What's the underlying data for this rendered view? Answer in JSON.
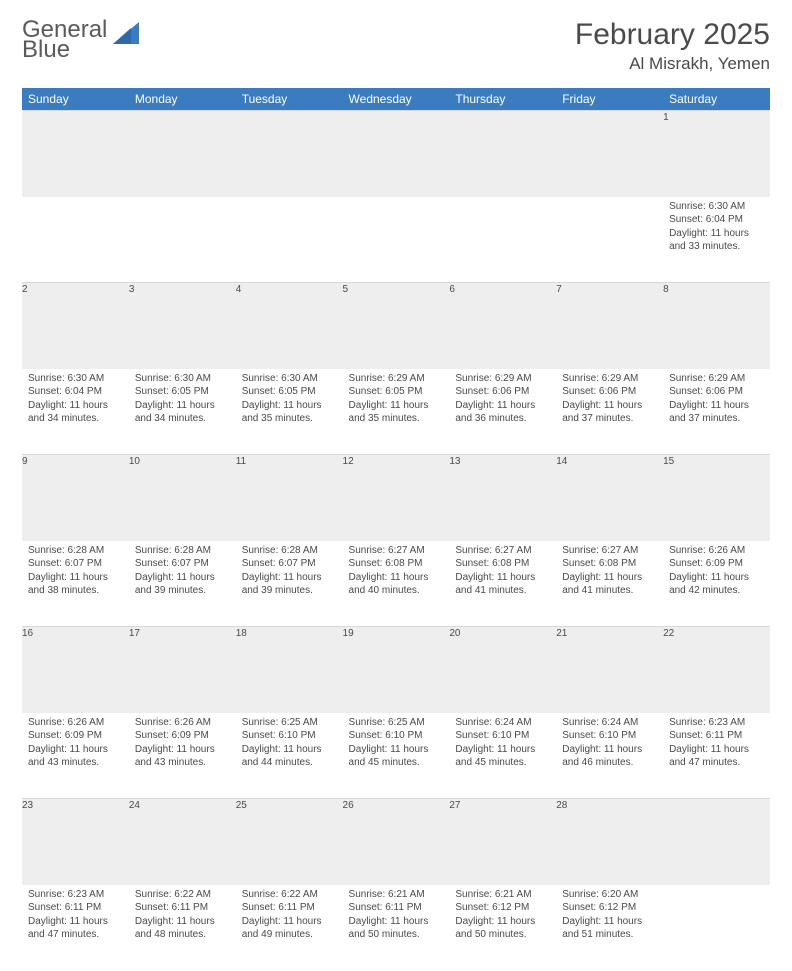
{
  "logo": {
    "text_top": "General",
    "text_bottom": "Blue"
  },
  "title": "February 2025",
  "location": "Al Misrakh, Yemen",
  "colors": {
    "header_bg": "#3b7bbf",
    "header_fg": "#ffffff",
    "daynum_bg": "#eeeeee",
    "text": "#4a4a4a",
    "page_bg": "#ffffff",
    "logo_blue": "#3b7bbf"
  },
  "weekdays": [
    "Sunday",
    "Monday",
    "Tuesday",
    "Wednesday",
    "Thursday",
    "Friday",
    "Saturday"
  ],
  "weeks": [
    [
      null,
      null,
      null,
      null,
      null,
      null,
      {
        "n": "1",
        "sr": "Sunrise: 6:30 AM",
        "ss": "Sunset: 6:04 PM",
        "dl": "Daylight: 11 hours and 33 minutes."
      }
    ],
    [
      {
        "n": "2",
        "sr": "Sunrise: 6:30 AM",
        "ss": "Sunset: 6:04 PM",
        "dl": "Daylight: 11 hours and 34 minutes."
      },
      {
        "n": "3",
        "sr": "Sunrise: 6:30 AM",
        "ss": "Sunset: 6:05 PM",
        "dl": "Daylight: 11 hours and 34 minutes."
      },
      {
        "n": "4",
        "sr": "Sunrise: 6:30 AM",
        "ss": "Sunset: 6:05 PM",
        "dl": "Daylight: 11 hours and 35 minutes."
      },
      {
        "n": "5",
        "sr": "Sunrise: 6:29 AM",
        "ss": "Sunset: 6:05 PM",
        "dl": "Daylight: 11 hours and 35 minutes."
      },
      {
        "n": "6",
        "sr": "Sunrise: 6:29 AM",
        "ss": "Sunset: 6:06 PM",
        "dl": "Daylight: 11 hours and 36 minutes."
      },
      {
        "n": "7",
        "sr": "Sunrise: 6:29 AM",
        "ss": "Sunset: 6:06 PM",
        "dl": "Daylight: 11 hours and 37 minutes."
      },
      {
        "n": "8",
        "sr": "Sunrise: 6:29 AM",
        "ss": "Sunset: 6:06 PM",
        "dl": "Daylight: 11 hours and 37 minutes."
      }
    ],
    [
      {
        "n": "9",
        "sr": "Sunrise: 6:28 AM",
        "ss": "Sunset: 6:07 PM",
        "dl": "Daylight: 11 hours and 38 minutes."
      },
      {
        "n": "10",
        "sr": "Sunrise: 6:28 AM",
        "ss": "Sunset: 6:07 PM",
        "dl": "Daylight: 11 hours and 39 minutes."
      },
      {
        "n": "11",
        "sr": "Sunrise: 6:28 AM",
        "ss": "Sunset: 6:07 PM",
        "dl": "Daylight: 11 hours and 39 minutes."
      },
      {
        "n": "12",
        "sr": "Sunrise: 6:27 AM",
        "ss": "Sunset: 6:08 PM",
        "dl": "Daylight: 11 hours and 40 minutes."
      },
      {
        "n": "13",
        "sr": "Sunrise: 6:27 AM",
        "ss": "Sunset: 6:08 PM",
        "dl": "Daylight: 11 hours and 41 minutes."
      },
      {
        "n": "14",
        "sr": "Sunrise: 6:27 AM",
        "ss": "Sunset: 6:08 PM",
        "dl": "Daylight: 11 hours and 41 minutes."
      },
      {
        "n": "15",
        "sr": "Sunrise: 6:26 AM",
        "ss": "Sunset: 6:09 PM",
        "dl": "Daylight: 11 hours and 42 minutes."
      }
    ],
    [
      {
        "n": "16",
        "sr": "Sunrise: 6:26 AM",
        "ss": "Sunset: 6:09 PM",
        "dl": "Daylight: 11 hours and 43 minutes."
      },
      {
        "n": "17",
        "sr": "Sunrise: 6:26 AM",
        "ss": "Sunset: 6:09 PM",
        "dl": "Daylight: 11 hours and 43 minutes."
      },
      {
        "n": "18",
        "sr": "Sunrise: 6:25 AM",
        "ss": "Sunset: 6:10 PM",
        "dl": "Daylight: 11 hours and 44 minutes."
      },
      {
        "n": "19",
        "sr": "Sunrise: 6:25 AM",
        "ss": "Sunset: 6:10 PM",
        "dl": "Daylight: 11 hours and 45 minutes."
      },
      {
        "n": "20",
        "sr": "Sunrise: 6:24 AM",
        "ss": "Sunset: 6:10 PM",
        "dl": "Daylight: 11 hours and 45 minutes."
      },
      {
        "n": "21",
        "sr": "Sunrise: 6:24 AM",
        "ss": "Sunset: 6:10 PM",
        "dl": "Daylight: 11 hours and 46 minutes."
      },
      {
        "n": "22",
        "sr": "Sunrise: 6:23 AM",
        "ss": "Sunset: 6:11 PM",
        "dl": "Daylight: 11 hours and 47 minutes."
      }
    ],
    [
      {
        "n": "23",
        "sr": "Sunrise: 6:23 AM",
        "ss": "Sunset: 6:11 PM",
        "dl": "Daylight: 11 hours and 47 minutes."
      },
      {
        "n": "24",
        "sr": "Sunrise: 6:22 AM",
        "ss": "Sunset: 6:11 PM",
        "dl": "Daylight: 11 hours and 48 minutes."
      },
      {
        "n": "25",
        "sr": "Sunrise: 6:22 AM",
        "ss": "Sunset: 6:11 PM",
        "dl": "Daylight: 11 hours and 49 minutes."
      },
      {
        "n": "26",
        "sr": "Sunrise: 6:21 AM",
        "ss": "Sunset: 6:11 PM",
        "dl": "Daylight: 11 hours and 50 minutes."
      },
      {
        "n": "27",
        "sr": "Sunrise: 6:21 AM",
        "ss": "Sunset: 6:12 PM",
        "dl": "Daylight: 11 hours and 50 minutes."
      },
      {
        "n": "28",
        "sr": "Sunrise: 6:20 AM",
        "ss": "Sunset: 6:12 PM",
        "dl": "Daylight: 11 hours and 51 minutes."
      },
      null
    ]
  ]
}
